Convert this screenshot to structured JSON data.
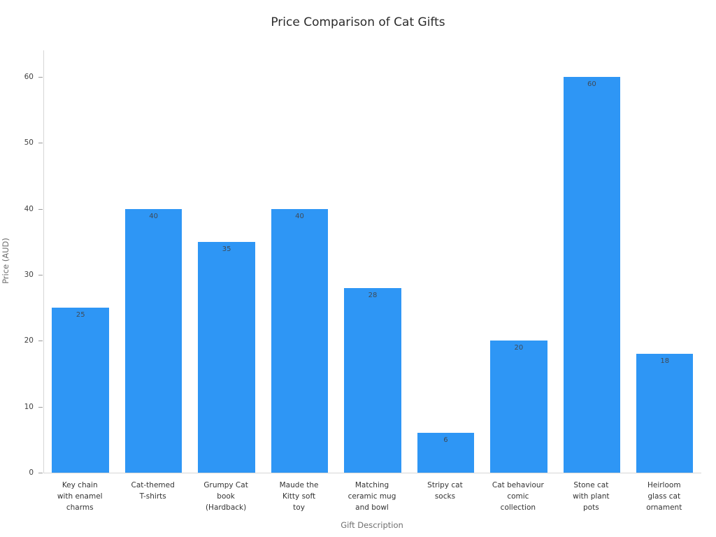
{
  "chart_data": {
    "type": "bar",
    "title": "Price Comparison of Cat Gifts",
    "xlabel": "Gift Description",
    "ylabel": "Price (AUD)",
    "categories": [
      "Key chain with enamel charms",
      "Cat-themed T-shirts",
      "Grumpy Cat book (Hardback)",
      "Maude the Kitty soft toy",
      "Matching ceramic mug and bowl",
      "Stripy cat socks",
      "Cat behaviour comic collection",
      "Stone cat with plant pots",
      "Heirloom glass cat ornament"
    ],
    "category_label_lines": [
      [
        "Key chain",
        "with enamel",
        "charms"
      ],
      [
        "Cat-themed",
        "T-shirts"
      ],
      [
        "Grumpy Cat",
        "book",
        "(Hardback)"
      ],
      [
        "Maude the",
        "Kitty soft",
        "toy"
      ],
      [
        "Matching",
        "ceramic mug",
        "and bowl"
      ],
      [
        "Stripy cat",
        "socks"
      ],
      [
        "Cat behaviour",
        "comic",
        "collection"
      ],
      [
        "Stone cat",
        "with plant",
        "pots"
      ],
      [
        "Heirloom",
        "glass cat",
        "ornament"
      ]
    ],
    "values": [
      25,
      40,
      35,
      40,
      28,
      6,
      20,
      60,
      18
    ],
    "value_labels": [
      "25",
      "40",
      "35",
      "40",
      "28",
      "6",
      "20",
      "60",
      "18"
    ],
    "bar_color": "#2e96f5",
    "value_label_color": "#3f4a56",
    "ylim": [
      0,
      64
    ],
    "yticks": [
      0,
      10,
      20,
      30,
      40,
      50,
      60
    ],
    "grid": false,
    "legend": "none"
  }
}
